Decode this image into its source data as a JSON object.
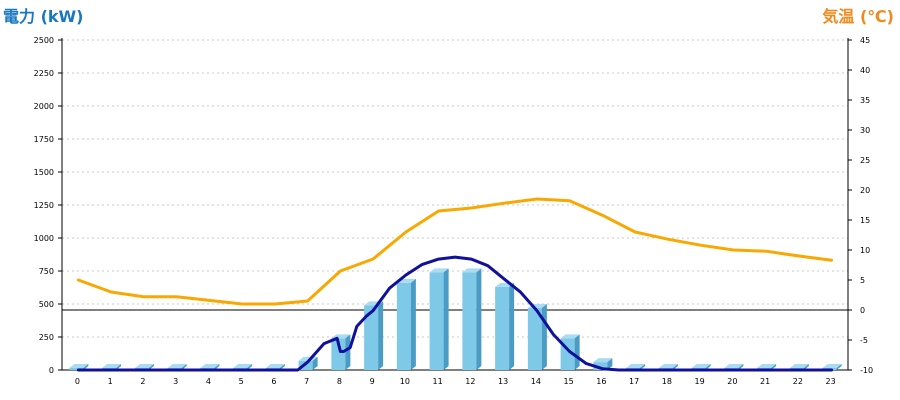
{
  "chart_data": {
    "type": "bar",
    "axes": {
      "left": {
        "title": "電力 (kW)",
        "range": [
          0,
          2500
        ],
        "step": 250,
        "color": "#1878c0"
      },
      "right": {
        "title": "気温 (℃)",
        "range": [
          -10,
          45
        ],
        "step": 5,
        "color": "#f08a1c"
      }
    },
    "categories": [
      "0",
      "1",
      "2",
      "3",
      "4",
      "5",
      "6",
      "7",
      "8",
      "9",
      "10",
      "11",
      "12",
      "13",
      "14",
      "15",
      "16",
      "17",
      "18",
      "19",
      "20",
      "21",
      "22",
      "23"
    ],
    "series": [
      {
        "kind": "bar",
        "axis": "left",
        "color": "#7ec8e8",
        "values": [
          15,
          15,
          15,
          15,
          15,
          15,
          15,
          70,
          240,
          490,
          660,
          740,
          740,
          630,
          470,
          240,
          60,
          15,
          15,
          15,
          15,
          15,
          15,
          15
        ]
      },
      {
        "kind": "line",
        "axis": "left",
        "color": "#10109c",
        "x": [
          0,
          1,
          2,
          3,
          4,
          5,
          6,
          6.7,
          7,
          7.5,
          7.9,
          8.0,
          8.1,
          8.3,
          8.5,
          8.8,
          9,
          9.5,
          10,
          10.5,
          11,
          11.5,
          12,
          12.5,
          13,
          13.5,
          14,
          14.5,
          15,
          15.5,
          16,
          16.5,
          17,
          18,
          19,
          20,
          21,
          22,
          23
        ],
        "values": [
          0,
          0,
          0,
          0,
          0,
          0,
          0,
          0,
          60,
          200,
          240,
          140,
          140,
          170,
          330,
          410,
          450,
          620,
          720,
          800,
          840,
          855,
          840,
          790,
          690,
          590,
          450,
          270,
          140,
          50,
          10,
          0,
          0,
          0,
          0,
          0,
          0,
          0,
          0
        ]
      },
      {
        "kind": "line",
        "axis": "right",
        "color": "#f8a800",
        "x": [
          0,
          1,
          2,
          3,
          4,
          5,
          6,
          7,
          8,
          9,
          10,
          11,
          12,
          13,
          14,
          15,
          16,
          17,
          18,
          19,
          20,
          21,
          22,
          23
        ],
        "values": [
          5,
          3,
          2.2,
          2.2,
          1.6,
          1,
          1,
          1.5,
          6.5,
          8.5,
          13,
          16.5,
          17,
          17.8,
          18.5,
          18.2,
          15.8,
          13,
          11.8,
          10.8,
          10,
          9.8,
          9,
          8.3
        ]
      }
    ],
    "grid": true,
    "zero_line_axis": "right"
  }
}
